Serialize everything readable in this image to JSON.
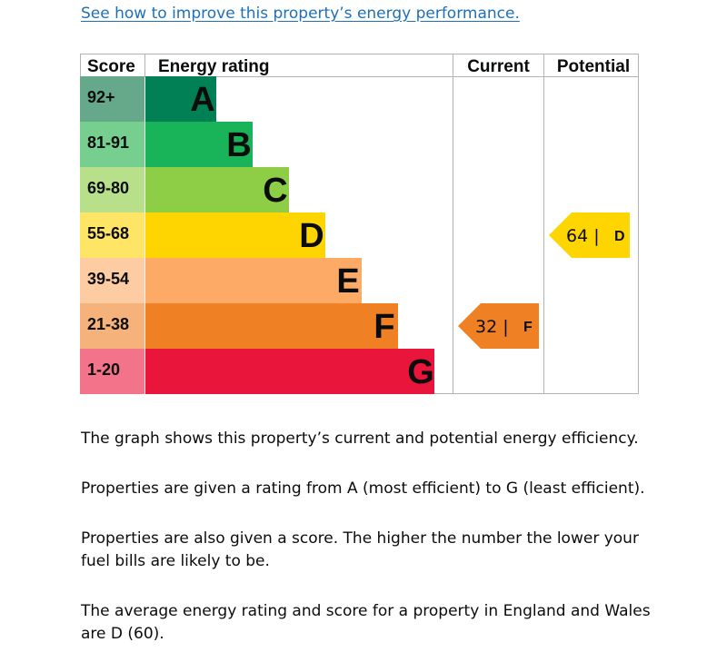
{
  "link_text": "See how to improve this property’s energy performance.",
  "chart_data": {
    "type": "table",
    "columns": {
      "score": "Score",
      "rating": "Energy rating",
      "current": "Current",
      "potential": "Potential"
    },
    "bands": [
      {
        "range": "92+",
        "letter": "A",
        "band_color": "#008054",
        "score_color": "#66a98a"
      },
      {
        "range": "81-91",
        "letter": "B",
        "band_color": "#19b459",
        "score_color": "#77cf8f"
      },
      {
        "range": "69-80",
        "letter": "C",
        "band_color": "#8dce46",
        "score_color": "#b8e08b"
      },
      {
        "range": "55-68",
        "letter": "D",
        "band_color": "#ffd500",
        "score_color": "#ffe566"
      },
      {
        "range": "39-54",
        "letter": "E",
        "band_color": "#fcaa65",
        "score_color": "#fdcca3"
      },
      {
        "range": "21-38",
        "letter": "F",
        "band_color": "#ef8023",
        "score_color": "#f5b37b"
      },
      {
        "range": "1-20",
        "letter": "G",
        "band_color": "#e9153b",
        "score_color": "#f2738a"
      }
    ],
    "current": {
      "score": 32,
      "letter": "F",
      "color": "#ef8023"
    },
    "potential": {
      "score": 64,
      "letter": "D",
      "color": "#ffd500"
    }
  },
  "paragraphs": [
    "The graph shows this property’s current and potential energy efficiency.",
    "Properties are given a rating from A (most efficient) to G (least efficient).",
    "Properties are also given a score. The higher the number the lower your fuel bills are likely to be.",
    "The average energy rating and score for a property in England and Wales are D (60)."
  ]
}
